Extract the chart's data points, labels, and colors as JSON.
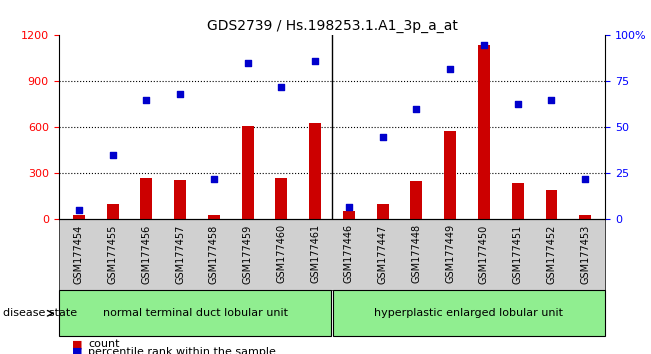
{
  "title": "GDS2739 / Hs.198253.1.A1_3p_a_at",
  "samples": [
    "GSM177454",
    "GSM177455",
    "GSM177456",
    "GSM177457",
    "GSM177458",
    "GSM177459",
    "GSM177460",
    "GSM177461",
    "GSM177446",
    "GSM177447",
    "GSM177448",
    "GSM177449",
    "GSM177450",
    "GSM177451",
    "GSM177452",
    "GSM177453"
  ],
  "counts": [
    30,
    100,
    270,
    255,
    30,
    610,
    270,
    630,
    55,
    100,
    250,
    580,
    1140,
    240,
    190,
    30
  ],
  "percentiles": [
    5,
    35,
    65,
    68,
    22,
    85,
    72,
    86,
    7,
    45,
    60,
    82,
    95,
    63,
    65,
    22
  ],
  "group1_label": "normal terminal duct lobular unit",
  "group2_label": "hyperplastic enlarged lobular unit",
  "group1_count": 8,
  "group2_count": 8,
  "ylim_left": [
    0,
    1200
  ],
  "ylim_right": [
    0,
    100
  ],
  "yticks_left": [
    0,
    300,
    600,
    900,
    1200
  ],
  "yticks_right": [
    0,
    25,
    50,
    75,
    100
  ],
  "bar_color": "#cc0000",
  "dot_color": "#0000cc",
  "group_bg": "#90ee90",
  "tick_bg": "#d0d0d0",
  "legend_count_label": "count",
  "legend_pct_label": "percentile rank within the sample",
  "disease_state_label": "disease state",
  "background_color": "#ffffff"
}
